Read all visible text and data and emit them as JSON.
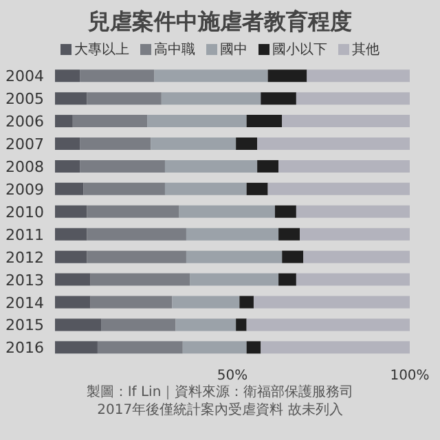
{
  "chart_data": {
    "type": "bar",
    "title": "兒虐案件中施虐者教育程度",
    "orientation": "horizontal",
    "stacked": true,
    "categories": [
      "2004",
      "2005",
      "2006",
      "2007",
      "2008",
      "2009",
      "2010",
      "2011",
      "2012",
      "2013",
      "2014",
      "2015",
      "2016"
    ],
    "series": [
      {
        "name": "大專以上",
        "color": "#55575f",
        "values": [
          7,
          9,
          5,
          7,
          7,
          8,
          9,
          9,
          9,
          10,
          10,
          13,
          12
        ]
      },
      {
        "name": "高中職",
        "color": "#7a7d84",
        "values": [
          21,
          21,
          21,
          20,
          24,
          23,
          26,
          28,
          28,
          28,
          23,
          21,
          24
        ]
      },
      {
        "name": "國中",
        "color": "#9ba2a9",
        "values": [
          32,
          28,
          28,
          24,
          26,
          23,
          27,
          26,
          27,
          25,
          19,
          17,
          18
        ]
      },
      {
        "name": "國小以下",
        "color": "#1e1e1e",
        "values": [
          11,
          10,
          10,
          6,
          6,
          6,
          6,
          6,
          6,
          5,
          4,
          3,
          4
        ]
      },
      {
        "name": "其他",
        "color": "#b3b3bd",
        "values": [
          29,
          32,
          36,
          43,
          37,
          40,
          32,
          31,
          30,
          32,
          44,
          46,
          42
        ]
      }
    ],
    "xlim": [
      0,
      100
    ],
    "xticks": [
      {
        "value": 50,
        "label": "50%"
      },
      {
        "value": 100,
        "label": "100%"
      }
    ],
    "legend": "top",
    "annotations": [
      "製圖：If Lin｜資料來源：衛福部保護服務司",
      "2017年後僅統計案內受虐資料 故未列入"
    ]
  }
}
